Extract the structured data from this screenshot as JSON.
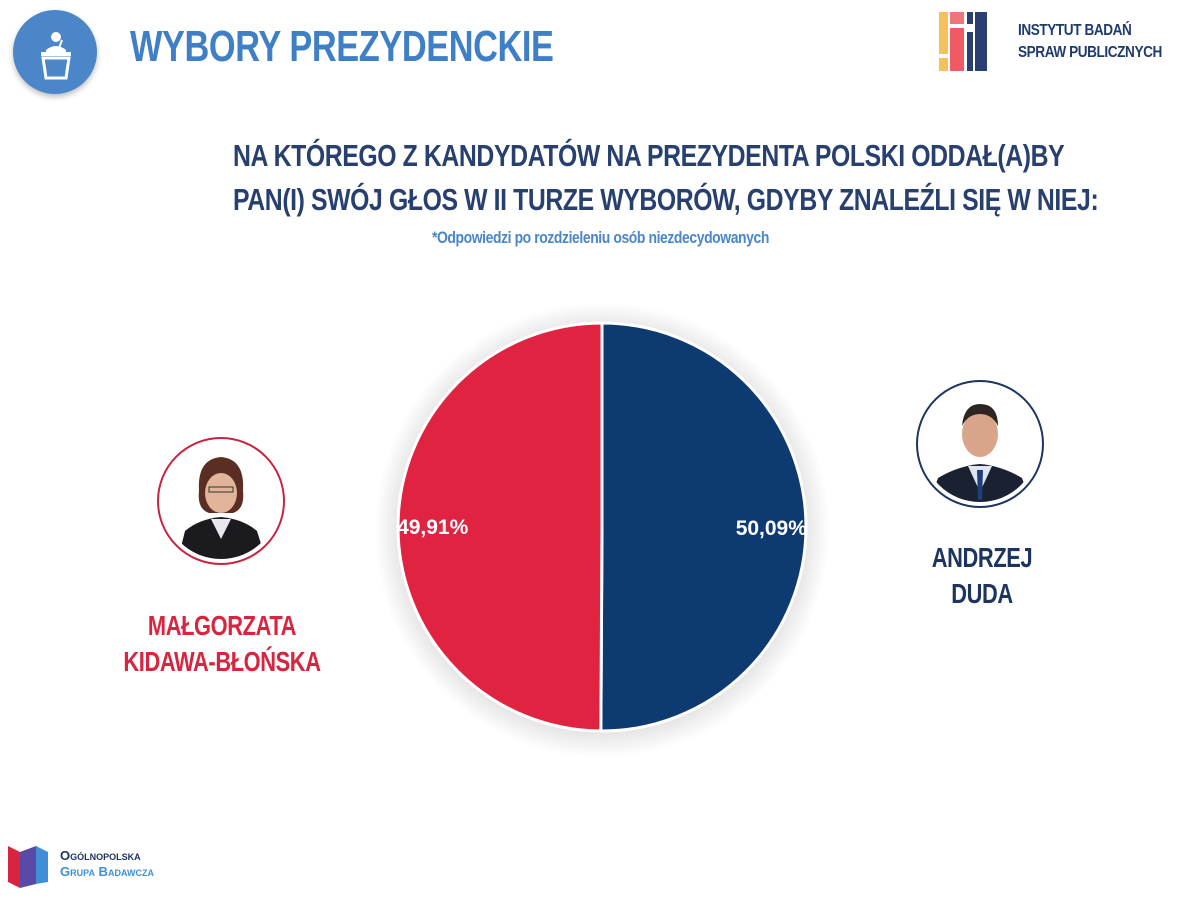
{
  "header": {
    "title": "WYBORY PREZYDENCKIE",
    "icon": "podium-icon",
    "accent": "#4a86c8"
  },
  "branding": {
    "institute_line1": "INSTYTUT BADAŃ",
    "institute_line2": "SPRAW PUBLICZNYCH",
    "group_line1": "Ogólnopolska",
    "group_line2": "Grupa Badawcza"
  },
  "question": {
    "line1": "NA KTÓREGO Z KANDYDATÓW NA PREZYDENTA POLSKI ODDAŁ(A)BY",
    "line2": "PAN(I) SWÓJ GŁOS W II TURZE WYBORÓW, GDYBY ZNALEŹLI SIĘ W NIEJ:",
    "footnote": "*Odpowiedzi po rozdzieleniu osób niezdecydowanych"
  },
  "chart_data": {
    "type": "pie",
    "title": "NA KTÓREGO Z KANDYDATÓW NA PREZYDENTA POLSKI ODDAŁ(A)BY PAN(I) SWÓJ GŁOS W II TURZE WYBORÓW, GDYBY ZNALEŹLI SIĘ W NIEJ:",
    "categories": [
      "ANDRZEJ DUDA",
      "MAŁGORZATA KIDAWA-BŁOŃSKA"
    ],
    "values": [
      50.09,
      49.91
    ],
    "labels": [
      "50,09%",
      "49,91%"
    ],
    "colors": [
      "#0e3a72",
      "#df2340"
    ],
    "legend": "none"
  },
  "candidates": {
    "left": {
      "name_line1": "MAŁGORZATA",
      "name_line2": "KIDAWA-BŁOŃSKA",
      "color": "#d8243f"
    },
    "right": {
      "name_line1": "ANDRZEJ",
      "name_line2": "DUDA",
      "color": "#1d3460"
    }
  }
}
